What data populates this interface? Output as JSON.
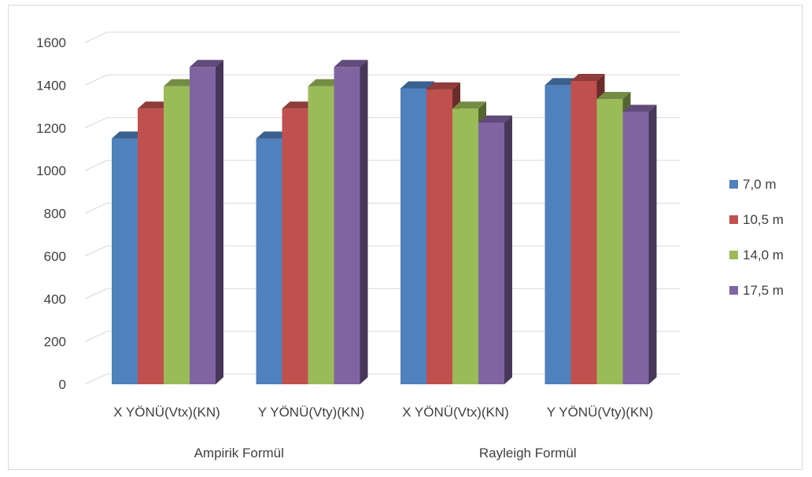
{
  "chart_data": {
    "type": "bar",
    "style": "3d-clustered-column",
    "groups": [
      {
        "label": "Ampirik Formül",
        "categories": [
          "X YÖNÜ(Vtx)(KN)",
          "Y YÖNÜ(Vty)(KN)"
        ]
      },
      {
        "label": "Rayleigh Formül",
        "categories": [
          "X YÖNÜ(Vtx)(KN)",
          "Y YÖNÜ(Vty)(KN)"
        ]
      }
    ],
    "categories": [
      "X YÖNÜ(Vtx)(KN)",
      "Y YÖNÜ(Vty)(KN)",
      "X YÖNÜ(Vtx)(KN)",
      "Y YÖNÜ(Vty)(KN)"
    ],
    "series": [
      {
        "name": "7,0 m",
        "color": "#4F81BD",
        "values": [
          1150,
          1150,
          1385,
          1400
        ]
      },
      {
        "name": "10,5 m",
        "color": "#C0504D",
        "values": [
          1290,
          1290,
          1380,
          1420
        ]
      },
      {
        "name": "14,0 m",
        "color": "#9BBB59",
        "values": [
          1395,
          1395,
          1290,
          1335
        ]
      },
      {
        "name": "17,5 m",
        "color": "#8064A2",
        "values": [
          1485,
          1485,
          1225,
          1275
        ]
      }
    ],
    "ylim": [
      0,
      1600
    ],
    "yticks": [
      "0",
      "200",
      "400",
      "600",
      "800",
      "1000",
      "1200",
      "1400",
      "1600"
    ],
    "grid": true,
    "legend_position": "right"
  }
}
